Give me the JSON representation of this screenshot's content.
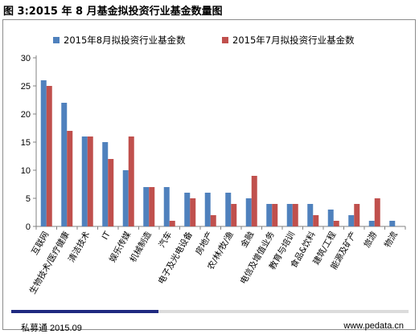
{
  "title": "图 3:2015 年 8 月基金拟投资行业基金数量图",
  "footer": {
    "source": "私募通  2015.09",
    "website": "www.pedata.cn",
    "progress": 0.37
  },
  "colors": {
    "series1": "#4f81bd",
    "series2": "#c0504d",
    "progress": "#1f2a80"
  },
  "chart_data": {
    "type": "bar",
    "categories": [
      "互联网",
      "生物技术/医疗健康",
      "清洁技术",
      "IT",
      "娱乐传媒",
      "机械制造",
      "汽车",
      "电子及光电设备",
      "房地产",
      "农/林/牧/渔",
      "金融",
      "电信及增值业务",
      "教育与培训",
      "食品&饮料",
      "建筑/工程",
      "能源及矿产",
      "旅游",
      "物流"
    ],
    "series": [
      {
        "name": "2015年8月拟投资行业基金数",
        "values": [
          26,
          22,
          16,
          15,
          10,
          7,
          7,
          6,
          6,
          6,
          5,
          4,
          4,
          4,
          3,
          2,
          1,
          1
        ]
      },
      {
        "name": "2015年7月拟投资行业基金数",
        "values": [
          25,
          17,
          16,
          12,
          16,
          7,
          1,
          5,
          2,
          4,
          9,
          4,
          4,
          2,
          1,
          4,
          5,
          0
        ]
      }
    ],
    "yticks": [
      0,
      5,
      10,
      15,
      20,
      25,
      30
    ],
    "ylim": [
      0,
      30
    ],
    "legend": "top",
    "grid": false
  }
}
